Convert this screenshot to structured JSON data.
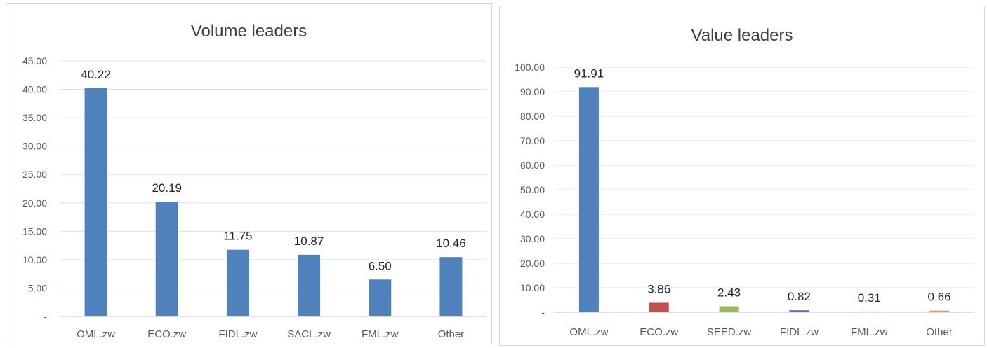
{
  "chart_data": [
    {
      "type": "bar",
      "title": "Volume leaders",
      "categories": [
        "OML.zw",
        "ECO.zw",
        "FIDL.zw",
        "SACL.zw",
        "FML.zw",
        "Other"
      ],
      "values": [
        40.22,
        20.19,
        11.75,
        10.87,
        6.5,
        10.46
      ],
      "data_labels": [
        "40.22",
        "20.19",
        "11.75",
        "10.87",
        "6.50",
        "10.46"
      ],
      "y_ticks": [
        "-",
        "5.00",
        "10.00",
        "15.00",
        "20.00",
        "25.00",
        "30.00",
        "35.00",
        "40.00",
        "45.00"
      ],
      "ylim": [
        0,
        45
      ],
      "grid": true,
      "legend": "none",
      "colors": [
        "#4f81bd",
        "#4f81bd",
        "#4f81bd",
        "#4f81bd",
        "#4f81bd",
        "#4f81bd"
      ],
      "xlabel": "",
      "ylabel": ""
    },
    {
      "type": "bar",
      "title": "Value leaders",
      "categories": [
        "OML.zw",
        "ECO.zw",
        "SEED.zw",
        "FIDL.zw",
        "FML.zw",
        "Other"
      ],
      "values": [
        91.91,
        3.86,
        2.43,
        0.82,
        0.31,
        0.66
      ],
      "data_labels": [
        "91.91",
        "3.86",
        "2.43",
        "0.82",
        "0.31",
        "0.66"
      ],
      "y_ticks": [
        "-",
        "10.00",
        "20.00",
        "30.00",
        "40.00",
        "50.00",
        "60.00",
        "70.00",
        "80.00",
        "90.00",
        "100.00"
      ],
      "ylim": [
        0,
        100
      ],
      "grid": true,
      "legend": "none",
      "colors": [
        "#4f81bd",
        "#c0504d",
        "#9bbb59",
        "#8064a2",
        "#4bacc6",
        "#f79646"
      ],
      "xlabel": "",
      "ylabel": ""
    }
  ]
}
